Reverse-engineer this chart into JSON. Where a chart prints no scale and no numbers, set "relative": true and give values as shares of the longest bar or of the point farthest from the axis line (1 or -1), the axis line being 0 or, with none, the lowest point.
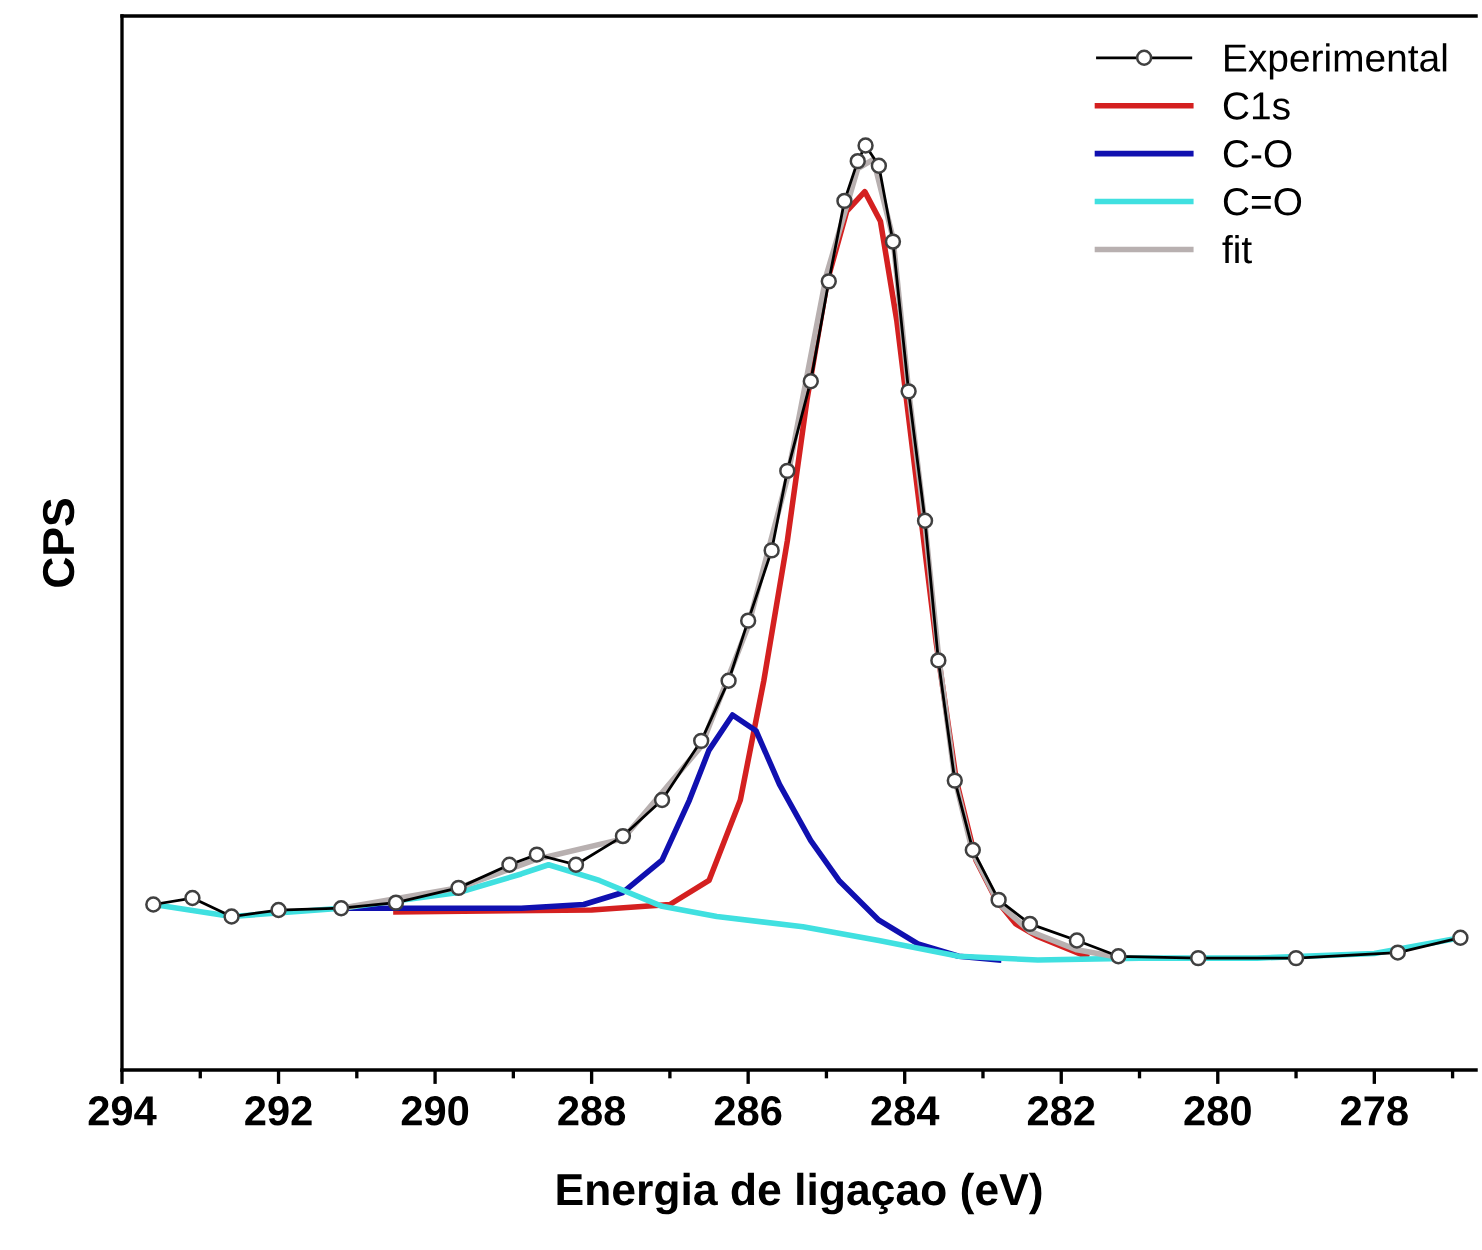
{
  "chart_data": {
    "type": "line",
    "xlabel": "Energia de ligaçao (eV)",
    "ylabel": "CPS",
    "relative": true,
    "xlim": [
      294,
      276.7
    ],
    "xticks": [
      294,
      {
        "value": 293,
        "label": null
      },
      292,
      {
        "value": 291,
        "label": null
      },
      290,
      {
        "value": 289,
        "label": null
      },
      288,
      {
        "value": 287,
        "label": null
      },
      286,
      {
        "value": 285,
        "label": null
      },
      284,
      {
        "value": 283,
        "label": null
      },
      282,
      {
        "value": 281,
        "label": null
      },
      280,
      {
        "value": 279,
        "label": null
      },
      278,
      {
        "value": 277,
        "label": null
      }
    ],
    "legend": "top right",
    "grid": false,
    "series": [
      {
        "name": "Experimental",
        "color": "#000000",
        "marker": "circle",
        "x": [
          293.6,
          293.1,
          292.6,
          292.0,
          291.2,
          290.5,
          289.7,
          289.05,
          288.7,
          288.2,
          287.6,
          287.1,
          286.6,
          286.25,
          286.0,
          285.7,
          285.5,
          285.2,
          284.97,
          284.77,
          284.6,
          284.5,
          284.33,
          284.15,
          283.95,
          283.74,
          283.57,
          283.36,
          283.13,
          282.8,
          282.4,
          281.8,
          281.27,
          280.25,
          279.0,
          277.7,
          276.9
        ],
        "values": [
          0.179,
          0.186,
          0.166,
          0.173,
          0.175,
          0.181,
          0.197,
          0.222,
          0.233,
          0.222,
          0.253,
          0.292,
          0.356,
          0.421,
          0.486,
          0.562,
          0.648,
          0.745,
          0.853,
          0.94,
          0.983,
          1.0,
          0.978,
          0.896,
          0.734,
          0.594,
          0.443,
          0.313,
          0.238,
          0.184,
          0.158,
          0.14,
          0.123,
          0.121,
          0.121,
          0.127,
          0.143
        ]
      },
      {
        "name": "C1s",
        "color": "#d42020",
        "x": [
          290.5,
          288.0,
          287.0,
          286.5,
          286.1,
          285.8,
          285.5,
          285.25,
          284.99,
          284.74,
          284.51,
          284.31,
          284.1,
          283.85,
          283.6,
          283.34,
          283.09,
          282.83,
          282.58,
          282.32,
          281.68
        ],
        "values": [
          0.171,
          0.173,
          0.179,
          0.205,
          0.292,
          0.421,
          0.572,
          0.724,
          0.853,
          0.929,
          0.95,
          0.918,
          0.81,
          0.637,
          0.464,
          0.313,
          0.227,
          0.184,
          0.158,
          0.145,
          0.123
        ]
      },
      {
        "name": "C-O",
        "color": "#1010b0",
        "x": [
          291.2,
          288.9,
          288.1,
          287.6,
          287.1,
          286.75,
          286.5,
          286.2,
          285.9,
          285.6,
          285.2,
          284.84,
          284.33,
          283.82,
          283.31,
          282.8
        ],
        "values": [
          0.175,
          0.175,
          0.179,
          0.192,
          0.227,
          0.292,
          0.346,
          0.384,
          0.367,
          0.309,
          0.248,
          0.205,
          0.162,
          0.136,
          0.123,
          0.119
        ]
      },
      {
        "name": "C=O",
        "color": "#40e0e0",
        "x": [
          293.6,
          292.6,
          291.2,
          289.7,
          288.9,
          288.55,
          287.9,
          287.1,
          286.4,
          285.3,
          284.33,
          283.31,
          282.3,
          281.0,
          279.5,
          278.0,
          276.9
        ],
        "values": [
          0.179,
          0.166,
          0.175,
          0.192,
          0.212,
          0.222,
          0.205,
          0.177,
          0.166,
          0.155,
          0.14,
          0.123,
          0.119,
          0.121,
          0.121,
          0.126,
          0.143
        ]
      },
      {
        "name": "fit",
        "color": "#b8b0b0",
        "x": [
          291.2,
          289.7,
          288.7,
          287.6,
          286.6,
          286.0,
          285.5,
          285.0,
          284.6,
          284.4,
          284.15,
          283.95,
          283.74,
          283.57,
          283.36,
          283.13,
          282.8,
          282.4,
          281.8,
          281.27
        ],
        "values": [
          0.175,
          0.197,
          0.228,
          0.25,
          0.35,
          0.48,
          0.64,
          0.86,
          0.975,
          0.985,
          0.9,
          0.735,
          0.59,
          0.45,
          0.315,
          0.235,
          0.18,
          0.15,
          0.13,
          0.122
        ]
      }
    ]
  }
}
